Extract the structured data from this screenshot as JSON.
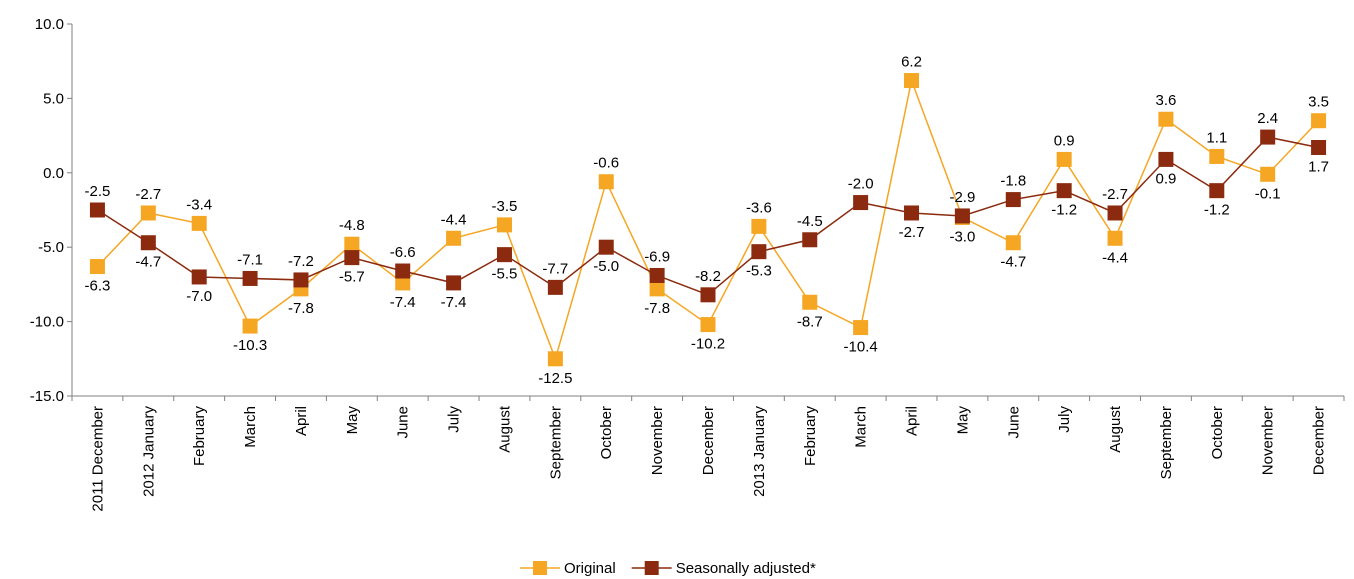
{
  "chart_data": {
    "type": "line",
    "title": "",
    "xlabel": "",
    "ylabel": "",
    "ylim": [
      -15,
      10
    ],
    "yticks": [
      "10.0",
      "5.0",
      "0.0",
      "-5.0",
      "-10.0",
      "-15.0"
    ],
    "grid": false,
    "legend_position": "bottom",
    "categories": [
      "2011 December",
      "2012 January",
      "February",
      "March",
      "April",
      "May",
      "June",
      "July",
      "August",
      "September",
      "October",
      "November",
      "December",
      "2013 January",
      "February",
      "March",
      "April",
      "May",
      "June",
      "July",
      "August",
      "September",
      "October",
      "November",
      "December"
    ],
    "series": [
      {
        "name": "Original",
        "color": "#F5A623",
        "marker": "square",
        "values": [
          -6.3,
          -2.7,
          -3.4,
          -10.3,
          -7.8,
          -4.8,
          -7.4,
          -4.4,
          -3.5,
          -12.5,
          -0.6,
          -7.8,
          -10.2,
          -3.6,
          -8.7,
          -10.4,
          6.2,
          -3.0,
          -4.7,
          0.9,
          -4.4,
          3.6,
          1.1,
          -0.1,
          3.5
        ],
        "labels": [
          "-6.3",
          "-2.7",
          "-3.4",
          "-10.3",
          "-7.8",
          "-4.8",
          "-7.4",
          "-4.4",
          "-3.5",
          "-12.5",
          "-0.6",
          "-7.8",
          "-10.2",
          "-3.6",
          "-8.7",
          "-10.4",
          "6.2",
          "-3.0",
          "-4.7",
          "0.9",
          "-4.4",
          "3.6",
          "1.1",
          "-0.1",
          "3.5"
        ]
      },
      {
        "name": "Seasonally adjusted*",
        "color": "#8B2A0E",
        "marker": "square",
        "values": [
          -2.5,
          -4.7,
          -7.0,
          -7.1,
          -7.2,
          -5.7,
          -6.6,
          -7.4,
          -5.5,
          -7.7,
          -5.0,
          -6.9,
          -8.2,
          -5.3,
          -4.5,
          -2.0,
          -2.7,
          -2.9,
          -1.8,
          -1.2,
          -2.7,
          0.9,
          -1.2,
          2.4,
          1.7
        ],
        "labels": [
          "-2.5",
          "-4.7",
          "-7.0",
          "-7.1",
          "-7.2",
          "-5.7",
          "-6.6",
          "-7.4",
          "-5.5",
          "-7.7",
          "-5.0",
          "-6.9",
          "-8.2",
          "-5.3",
          "-4.5",
          "-2.0",
          "-2.7",
          "-2.9",
          "-1.8",
          "-1.2",
          "-2.7",
          "0.9",
          "-1.2",
          "2.4",
          "1.7"
        ]
      }
    ]
  }
}
